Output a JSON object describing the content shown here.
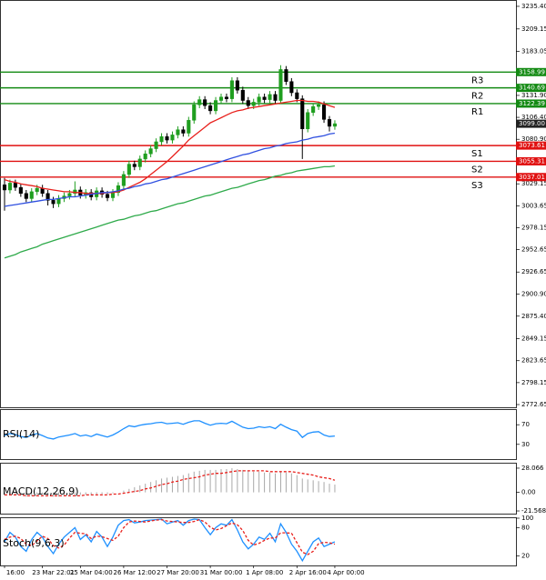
{
  "chart_data": [
    {
      "type": "candlestick",
      "categories": [
        "16:00",
        null,
        null,
        null,
        null,
        null,
        null,
        "23 Mar 22:01",
        null,
        null,
        null,
        null,
        null,
        null,
        "25 Mar 04:00",
        null,
        null,
        null,
        null,
        null,
        null,
        null,
        "26 Mar 12:00",
        null,
        null,
        null,
        null,
        null,
        null,
        null,
        "27 Mar 20:00",
        null,
        null,
        null,
        null,
        null,
        null,
        null,
        "31 Mar 00:00",
        null,
        null,
        null,
        null,
        null,
        null,
        null,
        "1 Apr 08:00",
        null,
        null,
        null,
        null,
        null,
        null,
        null,
        "2 Apr 16:00",
        null,
        null,
        null,
        null,
        null,
        null,
        "4 Apr 00:00"
      ],
      "open": [
        3028,
        3022,
        3030,
        3025,
        3018,
        3012,
        3020,
        3024,
        3018,
        3010,
        3006,
        3012,
        3015,
        3018,
        3022,
        3016,
        3019,
        3014,
        3021,
        3017,
        3013,
        3019,
        3027,
        3040,
        3052,
        3049,
        3058,
        3064,
        3070,
        3078,
        3084,
        3080,
        3086,
        3092,
        3088,
        3103,
        3121,
        3127,
        3120,
        3114,
        3126,
        3130,
        3128,
        3149,
        3138,
        3126,
        3120,
        3124,
        3130,
        3127,
        3133,
        3126,
        3162,
        3148,
        3135,
        3128,
        3093,
        3112,
        3119,
        3121,
        3104,
        3096
      ],
      "high": [
        3036,
        3034,
        3034,
        3029,
        3022,
        3024,
        3028,
        3028,
        3022,
        3014,
        3016,
        3019,
        3022,
        3032,
        3026,
        3023,
        3023,
        3025,
        3025,
        3021,
        3023,
        3031,
        3044,
        3056,
        3056,
        3062,
        3068,
        3074,
        3082,
        3088,
        3088,
        3090,
        3096,
        3096,
        3107,
        3125,
        3131,
        3131,
        3124,
        3130,
        3134,
        3134,
        3153,
        3153,
        3142,
        3130,
        3128,
        3134,
        3134,
        3137,
        3137,
        3167,
        3166,
        3152,
        3139,
        3132,
        3116,
        3123,
        3125,
        3125,
        3108,
        3103
      ],
      "low": [
        2998,
        3018,
        3021,
        3014,
        3008,
        3008,
        3016,
        3014,
        3004,
        3001,
        3002,
        3008,
        3011,
        3014,
        3012,
        3012,
        3010,
        3010,
        3013,
        3009,
        3009,
        3015,
        3023,
        3036,
        3045,
        3045,
        3054,
        3060,
        3066,
        3074,
        3076,
        3076,
        3082,
        3084,
        3084,
        3099,
        3117,
        3116,
        3110,
        3110,
        3122,
        3124,
        3124,
        3134,
        3122,
        3116,
        3116,
        3120,
        3123,
        3123,
        3122,
        3122,
        3144,
        3131,
        3124,
        3058,
        3089,
        3108,
        3115,
        3100,
        3090,
        3092
      ],
      "close": [
        3022,
        3030,
        3025,
        3018,
        3012,
        3020,
        3024,
        3018,
        3010,
        3006,
        3012,
        3015,
        3018,
        3022,
        3016,
        3019,
        3014,
        3021,
        3017,
        3013,
        3019,
        3027,
        3040,
        3052,
        3049,
        3058,
        3064,
        3070,
        3078,
        3084,
        3080,
        3086,
        3092,
        3088,
        3103,
        3121,
        3127,
        3120,
        3114,
        3126,
        3130,
        3128,
        3149,
        3138,
        3126,
        3120,
        3124,
        3130,
        3127,
        3133,
        3126,
        3162,
        3148,
        3135,
        3128,
        3093,
        3112,
        3119,
        3121,
        3104,
        3096,
        3099
      ],
      "up_color": "#1f9e1f",
      "down_color": "#000000",
      "series": [
        {
          "color": "#e8201c",
          "values": [
            3034,
            3032,
            3031,
            3029,
            3028,
            3027,
            3026,
            3024,
            3023,
            3022,
            3021,
            3020,
            3020,
            3019,
            3019,
            3018,
            3018,
            3018,
            3018,
            3019,
            3019,
            3020,
            3022,
            3025,
            3028,
            3031,
            3035,
            3040,
            3045,
            3050,
            3055,
            3061,
            3067,
            3073,
            3080,
            3085,
            3090,
            3095,
            3100,
            3103,
            3106,
            3109,
            3112,
            3114,
            3115,
            3117,
            3118,
            3119,
            3120,
            3121,
            3122,
            3123,
            3124,
            3125,
            3126,
            3126,
            3125,
            3125,
            3124,
            3122,
            3120,
            3118
          ]
        },
        {
          "color": "#3050e0",
          "values": [
            3003,
            3004,
            3005,
            3006,
            3007,
            3008,
            3009,
            3010,
            3011,
            3011,
            3012,
            3013,
            3014,
            3014,
            3015,
            3016,
            3017,
            3018,
            3019,
            3019,
            3020,
            3021,
            3023,
            3024,
            3026,
            3027,
            3029,
            3030,
            3032,
            3034,
            3035,
            3037,
            3039,
            3041,
            3043,
            3045,
            3047,
            3049,
            3051,
            3053,
            3055,
            3057,
            3059,
            3061,
            3063,
            3064,
            3066,
            3068,
            3070,
            3071,
            3073,
            3074,
            3076,
            3077,
            3078,
            3080,
            3081,
            3083,
            3084,
            3085,
            3087,
            3088
          ]
        },
        {
          "color": "#2eaa4a",
          "values": [
            2943,
            2945,
            2947,
            2950,
            2952,
            2954,
            2956,
            2959,
            2961,
            2963,
            2965,
            2967,
            2969,
            2971,
            2973,
            2975,
            2977,
            2979,
            2981,
            2983,
            2985,
            2987,
            2988,
            2990,
            2992,
            2993,
            2995,
            2997,
            2998,
            3000,
            3002,
            3004,
            3006,
            3007,
            3009,
            3011,
            3013,
            3015,
            3016,
            3018,
            3020,
            3022,
            3024,
            3025,
            3027,
            3029,
            3031,
            3033,
            3034,
            3036,
            3038,
            3039,
            3041,
            3042,
            3044,
            3045,
            3046,
            3047,
            3048,
            3049,
            3049,
            3050
          ]
        }
      ],
      "levels": [
        {
          "label": "R3",
          "value": 3158.99,
          "color": "#138a13"
        },
        {
          "label": "R2",
          "value": 3140.69,
          "color": "#138a13"
        },
        {
          "label": "R1",
          "value": 3122.39,
          "color": "#138a13"
        },
        {
          "label": "S1",
          "value": 3073.61,
          "color": "#e01010"
        },
        {
          "label": "S2",
          "value": 3055.31,
          "color": "#e01010"
        },
        {
          "label": "S3",
          "value": 3037.01,
          "color": "#e01010"
        }
      ],
      "last_price": {
        "value": 3099,
        "label": "3099.00"
      },
      "ylim": [
        2769.5,
        3241.7
      ],
      "yticks": [
        {
          "value": 3235.4,
          "label": "3235.40"
        },
        3209.15,
        3183.05,
        {
          "value": 3131.9,
          "label": "3131.90"
        },
        {
          "value": 3106.4,
          "label": "3106.40"
        },
        {
          "value": 3080.9,
          "label": "3080.90"
        },
        3029.15,
        3003.65,
        2978.15,
        2952.65,
        2926.65,
        {
          "value": 2900.9,
          "label": "2900.90"
        },
        {
          "value": 2875.4,
          "label": "2875.40"
        },
        2849.15,
        2823.65,
        2798.15,
        2772.65
      ],
      "grid": false
    },
    {
      "type": "line",
      "title": "RSI(14)",
      "ylim": [
        0,
        100
      ],
      "yticks": [
        70,
        30
      ],
      "grid": false,
      "series": [
        {
          "color": "#1e90ff",
          "values": [
            48,
            52,
            50,
            46,
            44,
            49,
            52,
            48,
            43,
            41,
            45,
            47,
            49,
            52,
            47,
            49,
            46,
            51,
            48,
            45,
            49,
            55,
            62,
            68,
            66,
            69,
            71,
            72,
            74,
            75,
            72,
            73,
            74,
            71,
            75,
            78,
            78,
            73,
            69,
            72,
            73,
            72,
            77,
            71,
            65,
            62,
            63,
            66,
            64,
            66,
            62,
            71,
            65,
            60,
            57,
            44,
            52,
            55,
            56,
            49,
            46,
            47
          ]
        }
      ]
    },
    {
      "type": "line",
      "title": "MACD(12,26,9)",
      "ylim": [
        -24.7,
        33.3
      ],
      "yticks": [
        28.066,
        {
          "value": 0,
          "label": "0.00"
        },
        -21.568
      ],
      "grid": false,
      "series": [
        {
          "type": "bar",
          "color": "#a8a8a8",
          "values": [
            -4,
            -3,
            -3,
            -4,
            -5,
            -4,
            -3,
            -3,
            -4,
            -5,
            -5,
            -4,
            -4,
            -3,
            -3,
            -3,
            -3,
            -2,
            -2,
            -2,
            -1,
            0,
            2,
            4,
            6,
            8,
            10,
            12,
            14,
            16,
            17,
            18,
            19,
            20,
            22,
            24,
            25,
            26,
            26,
            26,
            27,
            27,
            28,
            27,
            26,
            25,
            24,
            24,
            23,
            23,
            22,
            24,
            23,
            22,
            20,
            16,
            15,
            14,
            13,
            12,
            10,
            9
          ]
        },
        {
          "type": "line",
          "dashed": true,
          "color": "#e8201c",
          "values": [
            -3,
            -3,
            -3,
            -3,
            -4,
            -4,
            -4,
            -4,
            -4,
            -4,
            -4,
            -4,
            -4,
            -4,
            -4,
            -3,
            -3,
            -3,
            -3,
            -3,
            -2,
            -2,
            -1,
            0,
            1,
            2,
            4,
            5,
            7,
            9,
            10,
            12,
            13,
            15,
            16,
            17,
            18,
            20,
            21,
            22,
            22,
            23,
            24,
            25,
            25,
            25,
            25,
            25,
            25,
            24,
            24,
            24,
            24,
            24,
            23,
            22,
            21,
            20,
            18,
            17,
            16,
            14
          ]
        }
      ]
    },
    {
      "type": "line",
      "title": "Stoch(9,6,3)",
      "ylim": [
        0,
        100
      ],
      "yticks": [
        100,
        80,
        20
      ],
      "grid": false,
      "series": [
        {
          "color": "#1e90ff",
          "values": [
            50,
            70,
            60,
            40,
            30,
            55,
            70,
            60,
            40,
            25,
            45,
            60,
            70,
            80,
            55,
            65,
            50,
            72,
            60,
            40,
            60,
            85,
            95,
            97,
            90,
            92,
            95,
            96,
            97,
            98,
            88,
            92,
            95,
            85,
            95,
            98,
            97,
            80,
            65,
            80,
            88,
            85,
            97,
            75,
            50,
            35,
            45,
            60,
            55,
            68,
            50,
            88,
            70,
            45,
            30,
            10,
            30,
            50,
            58,
            40,
            45,
            50
          ]
        },
        {
          "dashed": true,
          "color": "#e8201c",
          "values": [
            55,
            60,
            62,
            57,
            45,
            42,
            52,
            62,
            57,
            42,
            37,
            43,
            58,
            70,
            68,
            67,
            57,
            62,
            61,
            57,
            53,
            62,
            80,
            92,
            94,
            93,
            92,
            94,
            96,
            97,
            94,
            93,
            92,
            91,
            91,
            93,
            97,
            92,
            81,
            75,
            78,
            84,
            90,
            86,
            74,
            53,
            43,
            47,
            53,
            58,
            58,
            69,
            69,
            68,
            48,
            28,
            23,
            30,
            46,
            49,
            48,
            45
          ]
        }
      ]
    }
  ]
}
